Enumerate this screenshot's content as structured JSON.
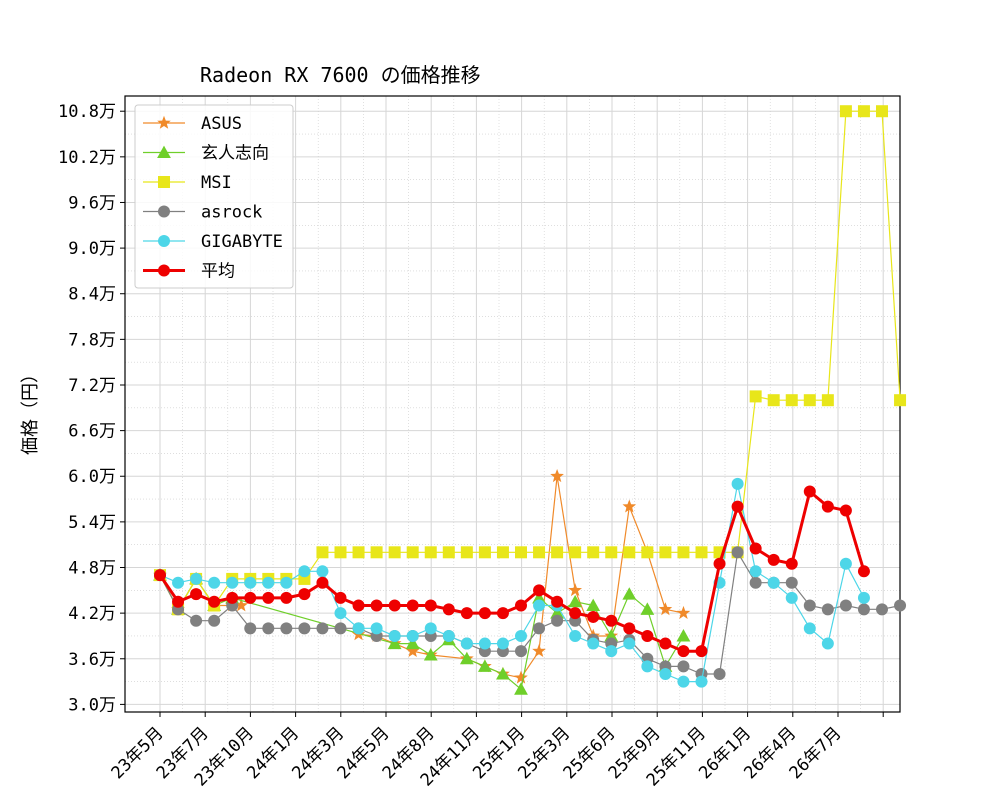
{
  "chart_data": {
    "type": "line",
    "title": "Radeon RX 7600 の価格推移",
    "xlabel": "",
    "ylabel": "価格（円）",
    "grid": true,
    "legend_position": "top-left",
    "x_tick_labels": [
      "23年5月",
      "23年7月",
      "23年10月",
      "24年1月",
      "24年3月",
      "24年5月",
      "24年8月",
      "24年11月",
      "25年1月",
      "25年3月",
      "25年6月",
      "25年9月",
      "25年11月",
      "26年1月",
      "26年4月",
      "26年7月"
    ],
    "y_ticks": [
      30000,
      36000,
      42000,
      48000,
      54000,
      60000,
      66000,
      72000,
      78000,
      84000,
      90000,
      96000,
      102000,
      108000
    ],
    "y_tick_labels": [
      "3.0万",
      "3.6万",
      "4.2万",
      "4.8万",
      "5.4万",
      "6.0万",
      "6.6万",
      "7.2万",
      "7.8万",
      "8.4万",
      "9.0万",
      "9.6万",
      "10.2万",
      "10.8万"
    ],
    "ylim": [
      29000,
      110000
    ],
    "series": [
      {
        "name": "ASUS",
        "color": "#f08a2a",
        "marker": "star",
        "width": 1.2,
        "points": [
          [
            0,
            47000
          ],
          [
            1,
            42500
          ],
          [
            2,
            46500
          ],
          [
            3,
            43000
          ],
          [
            4,
            43000
          ],
          [
            4.5,
            43000
          ],
          [
            5,
            null
          ],
          [
            11,
            39200
          ],
          [
            12,
            39000
          ],
          [
            13,
            38000
          ],
          [
            14,
            37000
          ],
          [
            15,
            36500
          ],
          [
            17,
            36000
          ],
          [
            18,
            35000
          ],
          [
            19,
            34000
          ],
          [
            20,
            33500
          ],
          [
            21,
            37000
          ],
          [
            22,
            60000
          ],
          [
            23,
            45000
          ],
          [
            24,
            39000
          ],
          [
            25,
            39000
          ],
          [
            26,
            56000
          ],
          [
            27,
            50000
          ],
          [
            28,
            42500
          ],
          [
            29,
            42000
          ]
        ]
      },
      {
        "name": "玄人志向",
        "color": "#6fcf2a",
        "marker": "triangle",
        "width": 1.2,
        "points": [
          [
            0,
            47000
          ],
          [
            1,
            42500
          ],
          [
            2,
            46500
          ],
          [
            3,
            43000
          ],
          [
            4,
            44000
          ],
          [
            13,
            38000
          ],
          [
            14,
            38000
          ],
          [
            15,
            36500
          ],
          [
            16,
            38500
          ],
          [
            17,
            36000
          ],
          [
            18,
            35000
          ],
          [
            19,
            34000
          ],
          [
            20,
            32000
          ],
          [
            21,
            44000
          ],
          [
            22,
            42000
          ],
          [
            23,
            43500
          ],
          [
            24,
            43000
          ],
          [
            25,
            39000
          ],
          [
            26,
            44500
          ],
          [
            27,
            42500
          ],
          [
            28,
            35000
          ],
          [
            29,
            39000
          ]
        ]
      },
      {
        "name": "MSI",
        "color": "#e8e61a",
        "marker": "square",
        "width": 1.2,
        "points": [
          [
            0,
            47000
          ],
          [
            1,
            42500
          ],
          [
            2,
            46500
          ],
          [
            3,
            43000
          ],
          [
            4,
            46500
          ],
          [
            5,
            46500
          ],
          [
            6,
            46500
          ],
          [
            7,
            46500
          ],
          [
            8,
            46500
          ],
          [
            9,
            50000
          ],
          [
            10,
            50000
          ],
          [
            11,
            50000
          ],
          [
            12,
            50000
          ],
          [
            13,
            50000
          ],
          [
            14,
            50000
          ],
          [
            15,
            50000
          ],
          [
            16,
            50000
          ],
          [
            17,
            50000
          ],
          [
            18,
            50000
          ],
          [
            19,
            50000
          ],
          [
            20,
            50000
          ],
          [
            21,
            50000
          ],
          [
            22,
            50000
          ],
          [
            23,
            50000
          ],
          [
            24,
            50000
          ],
          [
            25,
            50000
          ],
          [
            26,
            50000
          ],
          [
            27,
            50000
          ],
          [
            28,
            50000
          ],
          [
            29,
            50000
          ],
          [
            30,
            50000
          ],
          [
            31,
            50000
          ],
          [
            32,
            50000
          ],
          [
            33,
            70500
          ],
          [
            34,
            70000
          ],
          [
            35,
            70000
          ],
          [
            36,
            70000
          ],
          [
            37,
            70000
          ],
          [
            38,
            108000
          ],
          [
            39,
            108000
          ],
          [
            40,
            108000
          ],
          [
            41,
            70000
          ]
        ]
      },
      {
        "name": "asrock",
        "color": "#808080",
        "marker": "circle",
        "width": 1.2,
        "points": [
          [
            0,
            47000
          ],
          [
            1,
            42500
          ],
          [
            2,
            41000
          ],
          [
            3,
            41000
          ],
          [
            4,
            43000
          ],
          [
            5,
            40000
          ],
          [
            6,
            40000
          ],
          [
            7,
            40000
          ],
          [
            8,
            40000
          ],
          [
            9,
            40000
          ],
          [
            10,
            40000
          ],
          [
            11,
            40000
          ],
          [
            12,
            39000
          ],
          [
            13,
            39000
          ],
          [
            14,
            39000
          ],
          [
            15,
            39000
          ],
          [
            16,
            39000
          ],
          [
            17,
            38000
          ],
          [
            18,
            37000
          ],
          [
            19,
            37000
          ],
          [
            20,
            37000
          ],
          [
            21,
            40000
          ],
          [
            22,
            41000
          ],
          [
            23,
            41000
          ],
          [
            24,
            38500
          ],
          [
            25,
            38000
          ],
          [
            26,
            38500
          ],
          [
            27,
            36000
          ],
          [
            28,
            35000
          ],
          [
            29,
            35000
          ],
          [
            30,
            34000
          ],
          [
            31,
            34000
          ],
          [
            32,
            50000
          ],
          [
            33,
            46000
          ],
          [
            34,
            46000
          ],
          [
            35,
            46000
          ],
          [
            36,
            43000
          ],
          [
            37,
            42500
          ],
          [
            38,
            43000
          ],
          [
            39,
            42500
          ],
          [
            40,
            42500
          ],
          [
            41,
            43000
          ]
        ]
      },
      {
        "name": "GIGABYTE",
        "color": "#4dd6e8",
        "marker": "circle",
        "width": 1.2,
        "points": [
          [
            0,
            47000
          ],
          [
            1,
            46000
          ],
          [
            2,
            46500
          ],
          [
            3,
            46000
          ],
          [
            4,
            46000
          ],
          [
            5,
            46000
          ],
          [
            6,
            46000
          ],
          [
            7,
            46000
          ],
          [
            8,
            47500
          ],
          [
            9,
            47500
          ],
          [
            10,
            42000
          ],
          [
            11,
            40000
          ],
          [
            12,
            40000
          ],
          [
            13,
            39000
          ],
          [
            14,
            39000
          ],
          [
            15,
            40000
          ],
          [
            16,
            39000
          ],
          [
            17,
            38000
          ],
          [
            18,
            38000
          ],
          [
            19,
            38000
          ],
          [
            20,
            39000
          ],
          [
            21,
            43000
          ],
          [
            22,
            43000
          ],
          [
            23,
            39000
          ],
          [
            24,
            38000
          ],
          [
            25,
            37000
          ],
          [
            26,
            38000
          ],
          [
            27,
            35000
          ],
          [
            28,
            34000
          ],
          [
            29,
            33000
          ],
          [
            30,
            33000
          ],
          [
            31,
            46000
          ],
          [
            32,
            59000
          ],
          [
            33,
            47500
          ],
          [
            34,
            46000
          ],
          [
            35,
            44000
          ],
          [
            36,
            40000
          ],
          [
            37,
            38000
          ],
          [
            38,
            48500
          ],
          [
            39,
            44000
          ]
        ]
      },
      {
        "name": "平均",
        "color": "#ee0000",
        "marker": "circle",
        "width": 3,
        "points": [
          [
            0,
            47000
          ],
          [
            1,
            43500
          ],
          [
            2,
            44500
          ],
          [
            3,
            43500
          ],
          [
            4,
            44000
          ],
          [
            5,
            44000
          ],
          [
            6,
            44000
          ],
          [
            7,
            44000
          ],
          [
            8,
            44500
          ],
          [
            9,
            46000
          ],
          [
            10,
            44000
          ],
          [
            11,
            43000
          ],
          [
            12,
            43000
          ],
          [
            13,
            43000
          ],
          [
            14,
            43000
          ],
          [
            15,
            43000
          ],
          [
            16,
            42500
          ],
          [
            17,
            42000
          ],
          [
            18,
            42000
          ],
          [
            19,
            42000
          ],
          [
            20,
            43000
          ],
          [
            21,
            45000
          ],
          [
            22,
            43500
          ],
          [
            23,
            42000
          ],
          [
            24,
            41500
          ],
          [
            25,
            41000
          ],
          [
            26,
            40000
          ],
          [
            27,
            39000
          ],
          [
            28,
            38000
          ],
          [
            29,
            37000
          ],
          [
            30,
            37000
          ],
          [
            31,
            48500
          ],
          [
            32,
            56000
          ],
          [
            33,
            50500
          ],
          [
            34,
            49000
          ],
          [
            35,
            48500
          ],
          [
            36,
            58000
          ],
          [
            37,
            56000
          ],
          [
            38,
            55500
          ],
          [
            39,
            47500
          ]
        ]
      }
    ]
  }
}
